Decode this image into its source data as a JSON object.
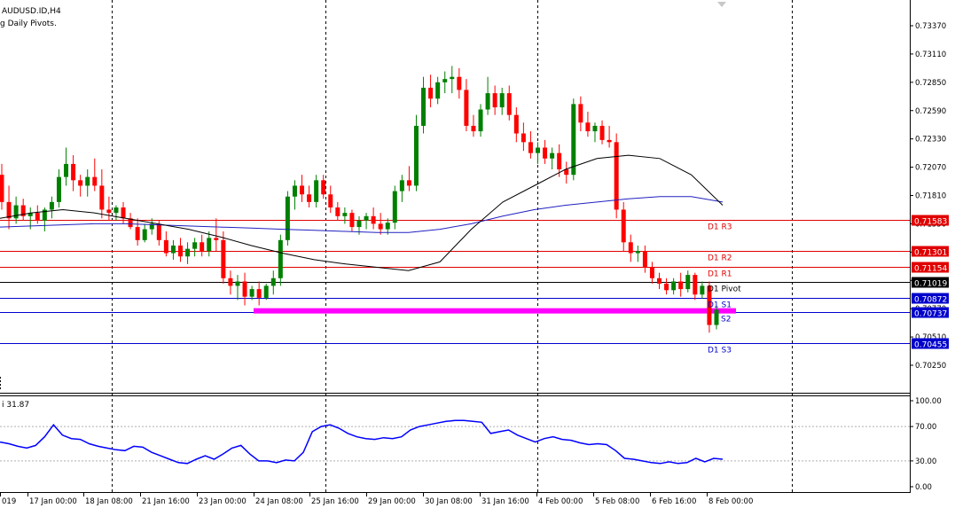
{
  "header": {
    "symbol": "AUDUSD.ID,H4",
    "indicator": "g Daily Pivots."
  },
  "oscillator": {
    "label": "i 31.87",
    "levels": [
      70,
      30
    ]
  },
  "chart_data": {
    "type": "candlestick",
    "price_ticks": [
      "0.73370",
      "0.73110",
      "0.72850",
      "0.72590",
      "0.72330",
      "0.72070",
      "0.71810",
      "0.71550",
      "0.71290",
      "0.71030",
      "0.70770",
      "0.70510",
      "0.70250"
    ],
    "osc_ticks": [
      "100.00",
      "70.00",
      "30.00",
      "0.00"
    ],
    "x_labels": [
      "019",
      "17 Jan 00:00",
      "18 Jan 08:00",
      "21 Jan 16:00",
      "23 Jan 00:00",
      "24 Jan 08:00",
      "25 Jan 16:00",
      "29 Jan 00:00",
      "30 Jan 08:00",
      "31 Jan 16:00",
      "4 Feb 00:00",
      "5 Feb 08:00",
      "6 Feb 16:00",
      "8 Feb 00:00"
    ],
    "pivots": [
      {
        "name": "D1 R3",
        "value": 0.71583,
        "price_label": "0.71583",
        "color": "#e00000"
      },
      {
        "name": "D1 R2",
        "value": 0.71301,
        "price_label": "0.71301",
        "color": "#e00000"
      },
      {
        "name": "D1 R1",
        "value": 0.71154,
        "price_label": "0.71154",
        "color": "#e00000"
      },
      {
        "name": "D1 Pivot",
        "value": 0.71019,
        "price_label": "0.71019",
        "color": "#000000"
      },
      {
        "name": "D1 S1",
        "value": 0.70872,
        "price_label": "0.70872",
        "color": "#0000cc"
      },
      {
        "name": "S2",
        "value": 0.70737,
        "price_label": "0.70737",
        "color": "#0000cc"
      },
      {
        "name": "D1 S3",
        "value": 0.70455,
        "price_label": "0.70455",
        "color": "#0000cc"
      }
    ],
    "zone_level": 0.7075,
    "colors": {
      "bull": "#008000",
      "bear": "#ff0000",
      "ma_fast": "#000000",
      "ma_slow": "#2020c0",
      "osc": "#0000ff",
      "zone": "#ff00ff"
    },
    "candles": [
      [
        0.72,
        0.721,
        0.7168,
        0.7175
      ],
      [
        0.7175,
        0.719,
        0.715,
        0.716
      ],
      [
        0.716,
        0.718,
        0.7155,
        0.7172
      ],
      [
        0.7172,
        0.7178,
        0.7158,
        0.7162
      ],
      [
        0.7162,
        0.717,
        0.715,
        0.7165
      ],
      [
        0.7165,
        0.7172,
        0.7155,
        0.7158
      ],
      [
        0.7158,
        0.717,
        0.7148,
        0.7168
      ],
      [
        0.7168,
        0.718,
        0.716,
        0.7175
      ],
      [
        0.7175,
        0.7205,
        0.717,
        0.7198
      ],
      [
        0.7198,
        0.7225,
        0.719,
        0.721
      ],
      [
        0.721,
        0.7218,
        0.7185,
        0.7195
      ],
      [
        0.7195,
        0.72,
        0.718,
        0.719
      ],
      [
        0.719,
        0.7205,
        0.718,
        0.7198
      ],
      [
        0.7198,
        0.7215,
        0.7185,
        0.719
      ],
      [
        0.719,
        0.7205,
        0.716,
        0.7168
      ],
      [
        0.7168,
        0.718,
        0.7158,
        0.7165
      ],
      [
        0.7165,
        0.7172,
        0.7158,
        0.717
      ],
      [
        0.717,
        0.7175,
        0.7155,
        0.716
      ],
      [
        0.716,
        0.7165,
        0.715,
        0.7152
      ],
      [
        0.7152,
        0.716,
        0.7135,
        0.714
      ],
      [
        0.714,
        0.7155,
        0.7138,
        0.715
      ],
      [
        0.715,
        0.716,
        0.7145,
        0.7155
      ],
      [
        0.7155,
        0.7158,
        0.7135,
        0.714
      ],
      [
        0.714,
        0.7148,
        0.7125,
        0.7128
      ],
      [
        0.7128,
        0.714,
        0.7122,
        0.7135
      ],
      [
        0.7135,
        0.7142,
        0.712,
        0.7125
      ],
      [
        0.7125,
        0.7138,
        0.7118,
        0.7132
      ],
      [
        0.7132,
        0.7142,
        0.7125,
        0.7138
      ],
      [
        0.7138,
        0.7145,
        0.7125,
        0.713
      ],
      [
        0.713,
        0.7148,
        0.7125,
        0.7142
      ],
      [
        0.7142,
        0.716,
        0.713,
        0.714
      ],
      [
        0.714,
        0.7148,
        0.71,
        0.7105
      ],
      [
        0.7105,
        0.7112,
        0.709,
        0.7098
      ],
      [
        0.7098,
        0.7108,
        0.7085,
        0.7102
      ],
      [
        0.7102,
        0.711,
        0.708,
        0.7088
      ],
      [
        0.7088,
        0.7098,
        0.7085,
        0.7095
      ],
      [
        0.7095,
        0.7102,
        0.708,
        0.7087
      ],
      [
        0.7087,
        0.71,
        0.7085,
        0.7098
      ],
      [
        0.7098,
        0.7112,
        0.709,
        0.7105
      ],
      [
        0.7105,
        0.7145,
        0.7098,
        0.714
      ],
      [
        0.714,
        0.7185,
        0.7135,
        0.718
      ],
      [
        0.718,
        0.7195,
        0.7168,
        0.719
      ],
      [
        0.719,
        0.72,
        0.7175,
        0.7182
      ],
      [
        0.7182,
        0.719,
        0.717,
        0.7175
      ],
      [
        0.7175,
        0.72,
        0.717,
        0.7195
      ],
      [
        0.7195,
        0.72,
        0.7178,
        0.7182
      ],
      [
        0.7182,
        0.719,
        0.7165,
        0.717
      ],
      [
        0.717,
        0.7175,
        0.7158,
        0.7162
      ],
      [
        0.7162,
        0.717,
        0.7155,
        0.7165
      ],
      [
        0.7165,
        0.7168,
        0.7148,
        0.7152
      ],
      [
        0.7152,
        0.7162,
        0.7145,
        0.7158
      ],
      [
        0.7158,
        0.7165,
        0.715,
        0.7162
      ],
      [
        0.7162,
        0.717,
        0.715,
        0.7155
      ],
      [
        0.7155,
        0.7165,
        0.7145,
        0.715
      ],
      [
        0.715,
        0.716,
        0.7145,
        0.7156
      ],
      [
        0.7156,
        0.719,
        0.715,
        0.7185
      ],
      [
        0.7185,
        0.72,
        0.7175,
        0.7195
      ],
      [
        0.7195,
        0.7208,
        0.7185,
        0.719
      ],
      [
        0.719,
        0.7255,
        0.7185,
        0.7245
      ],
      [
        0.7245,
        0.729,
        0.7238,
        0.728
      ],
      [
        0.728,
        0.7292,
        0.7262,
        0.727
      ],
      [
        0.727,
        0.729,
        0.7265,
        0.7285
      ],
      [
        0.7285,
        0.7295,
        0.7275,
        0.7288
      ],
      [
        0.7288,
        0.73,
        0.7275,
        0.729
      ],
      [
        0.729,
        0.7298,
        0.727,
        0.7278
      ],
      [
        0.7278,
        0.7288,
        0.724,
        0.7245
      ],
      [
        0.7245,
        0.7255,
        0.7235,
        0.724
      ],
      [
        0.724,
        0.7265,
        0.7235,
        0.726
      ],
      [
        0.726,
        0.729,
        0.7255,
        0.7275
      ],
      [
        0.7275,
        0.7282,
        0.7255,
        0.7262
      ],
      [
        0.7262,
        0.728,
        0.7255,
        0.7275
      ],
      [
        0.7275,
        0.7282,
        0.725,
        0.7255
      ],
      [
        0.7255,
        0.7262,
        0.723,
        0.7238
      ],
      [
        0.7238,
        0.7248,
        0.7222,
        0.723
      ],
      [
        0.723,
        0.724,
        0.7215,
        0.722
      ],
      [
        0.722,
        0.723,
        0.721,
        0.7225
      ],
      [
        0.7225,
        0.7232,
        0.721,
        0.7215
      ],
      [
        0.7215,
        0.7225,
        0.7205,
        0.722
      ],
      [
        0.722,
        0.7228,
        0.7198,
        0.7205
      ],
      [
        0.7205,
        0.7212,
        0.7192,
        0.72
      ],
      [
        0.72,
        0.727,
        0.7195,
        0.7265
      ],
      [
        0.7265,
        0.7272,
        0.724,
        0.7248
      ],
      [
        0.7248,
        0.7258,
        0.7235,
        0.724
      ],
      [
        0.724,
        0.7248,
        0.723,
        0.7245
      ],
      [
        0.7245,
        0.725,
        0.7228,
        0.7232
      ],
      [
        0.7232,
        0.7245,
        0.7225,
        0.723
      ],
      [
        0.723,
        0.7238,
        0.716,
        0.7168
      ],
      [
        0.7168,
        0.7175,
        0.713,
        0.7138
      ],
      [
        0.7138,
        0.7145,
        0.712,
        0.7128
      ],
      [
        0.7128,
        0.7135,
        0.712,
        0.713
      ],
      [
        0.713,
        0.7135,
        0.711,
        0.7115
      ],
      [
        0.7115,
        0.712,
        0.71,
        0.7105
      ],
      [
        0.7105,
        0.711,
        0.7095,
        0.71
      ],
      [
        0.71,
        0.7105,
        0.709,
        0.7094
      ],
      [
        0.7094,
        0.7105,
        0.709,
        0.7102
      ],
      [
        0.7102,
        0.711,
        0.7088,
        0.7095
      ],
      [
        0.7095,
        0.7112,
        0.7092,
        0.7108
      ],
      [
        0.7108,
        0.711,
        0.7085,
        0.709
      ],
      [
        0.709,
        0.7102,
        0.7086,
        0.7098
      ],
      [
        0.7098,
        0.7102,
        0.7055,
        0.7062
      ],
      [
        0.7062,
        0.708,
        0.7058,
        0.7076
      ]
    ],
    "ma_fast": [
      0.716,
      0.7165,
      0.7168,
      0.7165,
      0.716,
      0.7155,
      0.715,
      0.7143,
      0.7135,
      0.7128,
      0.7122,
      0.7118,
      0.7115,
      0.7112,
      0.712,
      0.715,
      0.7175,
      0.719,
      0.7205,
      0.7215,
      0.7218,
      0.7215,
      0.72,
      0.7172
    ],
    "ma_slow": [
      0.7152,
      0.7153,
      0.7154,
      0.7155,
      0.7155,
      0.7154,
      0.7153,
      0.7152,
      0.7151,
      0.715,
      0.7149,
      0.7148,
      0.7147,
      0.7147,
      0.715,
      0.7155,
      0.7162,
      0.7168,
      0.7172,
      0.7175,
      0.7178,
      0.718,
      0.718,
      0.7175
    ],
    "osc_values": [
      52,
      50,
      47,
      45,
      48,
      58,
      72,
      60,
      56,
      55,
      50,
      47,
      45,
      43,
      42,
      47,
      46,
      40,
      36,
      32,
      28,
      27,
      32,
      36,
      32,
      38,
      45,
      48,
      38,
      30,
      30,
      28,
      31,
      30,
      40,
      64,
      70,
      72,
      68,
      62,
      58,
      56,
      55,
      57,
      56,
      58,
      66,
      70,
      72,
      74,
      76,
      77,
      77,
      76,
      75,
      62,
      64,
      66,
      60,
      56,
      52,
      56,
      58,
      55,
      54,
      51,
      49,
      50,
      49,
      42,
      33,
      32,
      30,
      28,
      27,
      29,
      27,
      28,
      33,
      29,
      33,
      32
    ]
  }
}
